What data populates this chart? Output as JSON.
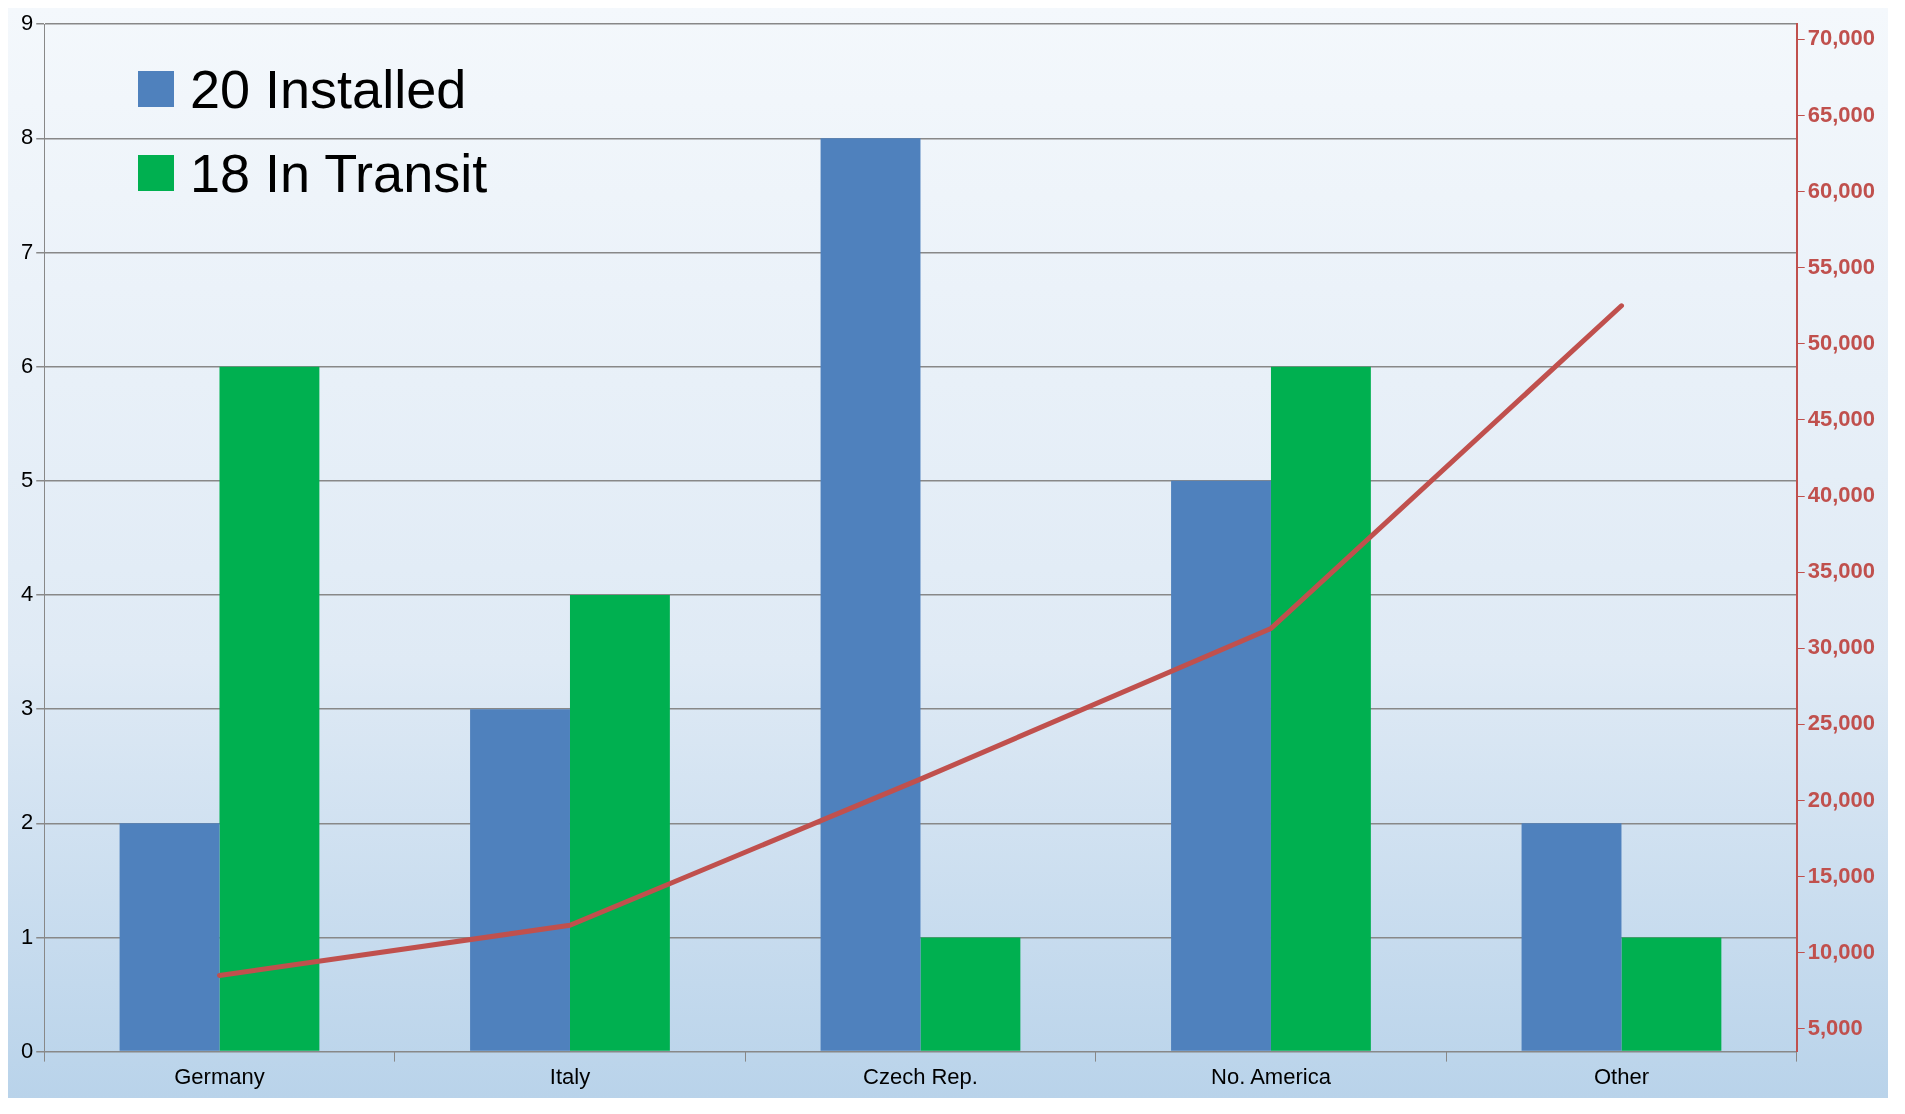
{
  "chart_data": {
    "type": "bar",
    "categories": [
      "Germany",
      "Italy",
      "Czech Rep.",
      "No. America",
      "Other"
    ],
    "series": [
      {
        "name": "20 Installed",
        "color": "#4f81bd",
        "values": [
          2,
          3,
          8,
          5,
          2
        ]
      },
      {
        "name": "18 In Transit",
        "color": "#00b050",
        "values": [
          6,
          4,
          1,
          6,
          1
        ]
      },
      {
        "type": "line",
        "axis": "y2",
        "color": "#c0504d",
        "values": [
          8500,
          11800,
          21400,
          31300,
          52500
        ]
      }
    ],
    "ylim": [
      0,
      9
    ],
    "yticks": [
      0,
      1,
      2,
      3,
      4,
      5,
      6,
      7,
      8,
      9
    ],
    "y2lim": [
      3500,
      71000
    ],
    "y2ticks": [
      {
        "value": 5000,
        "label": "5,000"
      },
      {
        "value": 10000,
        "label": "10,000"
      },
      {
        "value": 15000,
        "label": "15,000"
      },
      {
        "value": 20000,
        "label": "20,000"
      },
      {
        "value": 25000,
        "label": "25,000"
      },
      {
        "value": 30000,
        "label": "30,000"
      },
      {
        "value": 35000,
        "label": "35,000"
      },
      {
        "value": 40000,
        "label": "40,000"
      },
      {
        "value": 45000,
        "label": "45,000"
      },
      {
        "value": 50000,
        "label": "50,000"
      },
      {
        "value": 55000,
        "label": "55,000"
      },
      {
        "value": 60000,
        "label": "60,000"
      },
      {
        "value": 65000,
        "label": "65,000"
      },
      {
        "value": 70000,
        "label": "70,000"
      }
    ],
    "grid": "y",
    "legend": "top left"
  }
}
